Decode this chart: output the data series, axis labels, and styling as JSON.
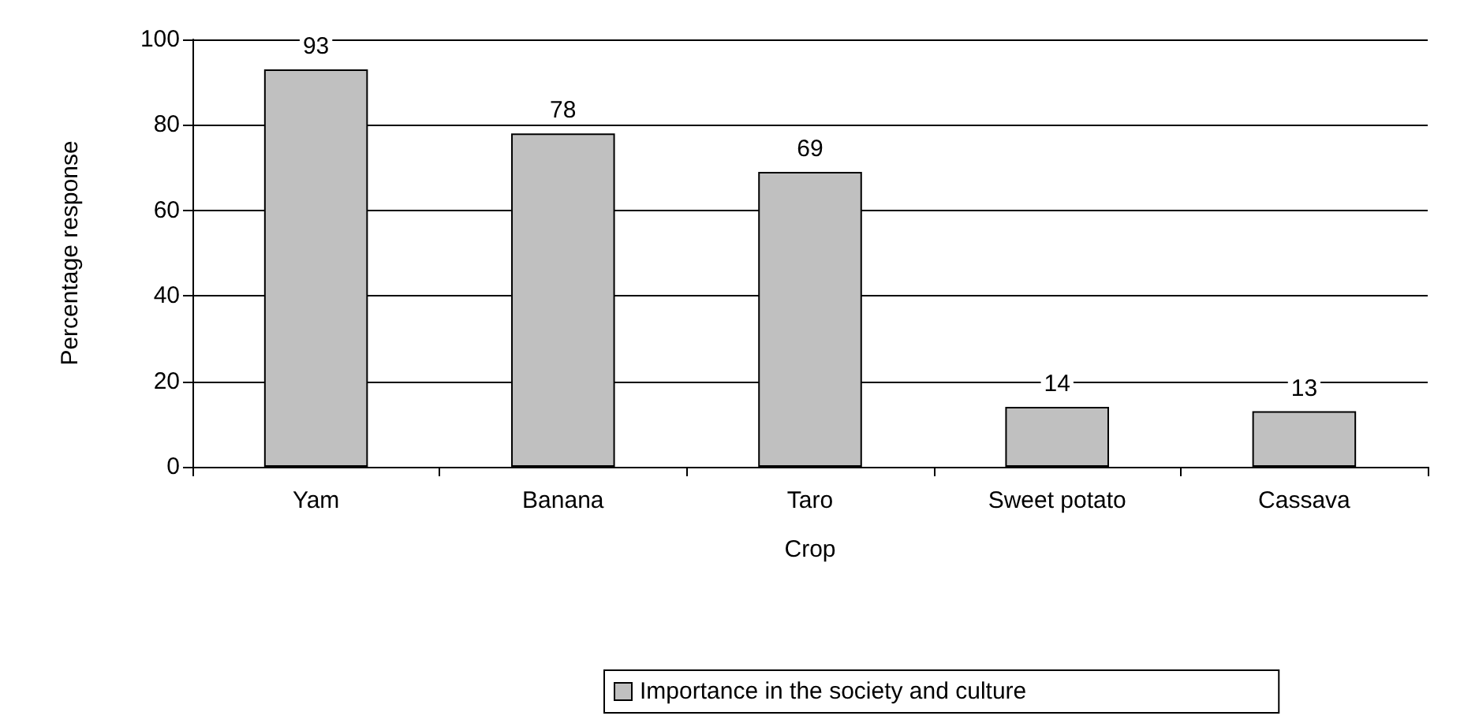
{
  "chart_data": {
    "type": "bar",
    "xlabel": "Crop",
    "ylabel": "Percentage response",
    "categories": [
      "Yam",
      "Banana",
      "Taro",
      "Sweet potato",
      "Cassava"
    ],
    "series": [
      {
        "name": "Importance in the society and culture",
        "color": "#c0c0c0",
        "values": [
          93,
          78,
          69,
          14,
          13
        ]
      }
    ],
    "ylim": [
      0,
      100
    ],
    "yticks": [
      0,
      20,
      40,
      60,
      80,
      100
    ],
    "grid": "y",
    "legend": "bottom",
    "data_labels": true
  }
}
